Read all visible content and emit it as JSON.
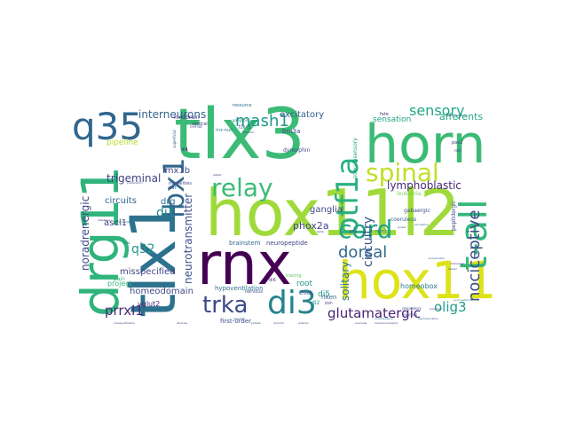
{
  "words": [
    {
      "text": "tlx3",
      "color": "#3BBB75"
    },
    {
      "text": "horn",
      "color": "#3BBB75"
    },
    {
      "text": "hox11l2",
      "color": "#9FDA3A"
    },
    {
      "text": "tlx1",
      "color": "#2C728E"
    },
    {
      "text": "drg11",
      "color": "#2FB47C"
    },
    {
      "text": "rnx",
      "color": "#440154"
    },
    {
      "text": "hox11",
      "color": "#DDE318"
    },
    {
      "text": "q35",
      "color": "#31668E"
    },
    {
      "text": "t-all",
      "color": "#35B779"
    },
    {
      "text": "lbx1",
      "color": "#31688E"
    },
    {
      "text": "ptf1a",
      "color": "#2AB07F"
    },
    {
      "text": "spinal",
      "color": "#C0DF25"
    },
    {
      "text": "cord",
      "color": "#20A386"
    },
    {
      "text": "relay",
      "color": "#3BBB75"
    },
    {
      "text": "di3",
      "color": "#26828E"
    },
    {
      "text": "trka",
      "color": "#3E4A89"
    },
    {
      "text": "mash1",
      "color": "#1F988B"
    },
    {
      "text": "nociceptive",
      "color": "#3E4C8A"
    },
    {
      "text": "dorsal",
      "color": "#31688E"
    },
    {
      "text": "sensory",
      "color": "#22A884"
    },
    {
      "text": "glutamatergic",
      "color": "#482475"
    },
    {
      "text": "olig3",
      "color": "#1E9B8A"
    },
    {
      "text": "prrxl1",
      "color": "#482878"
    },
    {
      "text": "q32",
      "color": "#1F9A8A"
    },
    {
      "text": "di1",
      "color": "#23888E"
    },
    {
      "text": "circuitry",
      "color": "#3B528B"
    },
    {
      "text": "solitary",
      "color": "#2A788E"
    },
    {
      "text": "lymphoblastic",
      "color": "#482878"
    },
    {
      "text": "interneurons",
      "color": "#33638D"
    },
    {
      "text": "trigeminal",
      "color": "#433E85"
    },
    {
      "text": "neurotransmitter",
      "color": "#3B528B"
    },
    {
      "text": "noradrenergic",
      "color": "#3F4788"
    },
    {
      "text": "homeodomain",
      "color": "#3E4A89"
    },
    {
      "text": "misspecified",
      "color": "#414487"
    },
    {
      "text": "circuits",
      "color": "#33638D"
    },
    {
      "text": "ascl1",
      "color": "#433E85"
    },
    {
      "text": "phox2a",
      "color": "#3F4788"
    },
    {
      "text": "lmx1b",
      "color": "#404688"
    },
    {
      "text": "drg",
      "color": "#2D708E"
    },
    {
      "text": "ganglia",
      "color": "#3E4C8A"
    },
    {
      "text": "excitatory",
      "color": "#35608D"
    },
    {
      "text": "afferents",
      "color": "#25AB82"
    },
    {
      "text": "sensation",
      "color": "#20A486"
    },
    {
      "text": "root",
      "color": "#21918C"
    },
    {
      "text": "di5",
      "color": "#1F968B"
    },
    {
      "text": "pipeline",
      "color": "#B8DE29"
    },
    {
      "text": "project",
      "color": "#35B779"
    },
    {
      "text": "vglut2",
      "color": "#482475"
    },
    {
      "text": "brainstem",
      "color": "#31688E"
    },
    {
      "text": "neuropeptide",
      "color": "#404588"
    },
    {
      "text": "homeobox",
      "color": "#2A788E"
    },
    {
      "text": "hindbrain",
      "color": "#46327E"
    },
    {
      "text": "first-order",
      "color": "#3E4A89"
    },
    {
      "text": "hypoventilation",
      "color": "#2C728E"
    },
    {
      "text": "riken",
      "color": "#31688E"
    },
    {
      "text": "gabaergic",
      "color": "#3B528B"
    },
    {
      "text": "coeruleus",
      "color": "#34618D"
    },
    {
      "text": "leukemia",
      "color": "#7AD151"
    },
    {
      "text": "peptidergic",
      "color": "#3E4A89"
    },
    {
      "text": "tlx-3",
      "color": "#365C8D"
    },
    {
      "text": "dynorphin",
      "color": "#3E4A89"
    },
    {
      "text": "somatosensory",
      "color": "#1FA088"
    },
    {
      "text": "chick",
      "color": "#404688"
    },
    {
      "text": "di2",
      "color": "#1F968B"
    },
    {
      "text": "di4",
      "color": "#482475"
    },
    {
      "text": "di6",
      "color": "#453781"
    },
    {
      "text": "ventral",
      "color": "#46337E"
    },
    {
      "text": "nervous",
      "color": "#3E4A89"
    },
    {
      "text": "ngn1",
      "color": "#2D708E"
    },
    {
      "text": "pax2",
      "color": "#443A83"
    },
    {
      "text": "fate",
      "color": "#453781"
    },
    {
      "text": "resource",
      "color": "#2C728E"
    },
    {
      "text": "modalities",
      "color": "#3E4C8A"
    },
    {
      "text": "respiratory",
      "color": "#3B528B"
    },
    {
      "text": "neurons",
      "color": "#39568C"
    },
    {
      "text": "prv",
      "color": "#3F4788"
    },
    {
      "text": "alar",
      "color": "#3E4C8A"
    },
    {
      "text": "bhlh",
      "color": "#46327E"
    },
    {
      "text": "cryptic",
      "color": "#2FB47C"
    },
    {
      "text": "pain",
      "color": "#3BBB75"
    },
    {
      "text": "tracing",
      "color": "#5EC962"
    },
    {
      "text": "brn3a",
      "color": "#3F4788"
    },
    {
      "text": "rnx-null",
      "color": "#2A788E"
    },
    {
      "text": "superficial",
      "color": "#365C8D"
    },
    {
      "text": "taste",
      "color": "#46327E"
    },
    {
      "text": "visceral",
      "color": "#404688"
    },
    {
      "text": "mechanoreceptor",
      "color": "#3E4A89"
    },
    {
      "text": "neuronal",
      "color": "#414487"
    },
    {
      "text": "noradrenaline",
      "color": "#2A788E"
    },
    {
      "text": "peltate",
      "color": "#31688E"
    },
    {
      "text": "hox11l1",
      "color": "#414487"
    },
    {
      "text": "anterior",
      "color": "#3E4A89"
    },
    {
      "text": "electroporation",
      "color": "#33638D"
    },
    {
      "text": "misspecification",
      "color": "#3E4C8A"
    },
    {
      "text": "libraries",
      "color": "#414487"
    },
    {
      "text": "precursor",
      "color": "#46327E"
    },
    {
      "text": "pruriceptors",
      "color": "#2A788E"
    },
    {
      "text": "spatio-temporal",
      "color": "#3E4A89"
    },
    {
      "text": "cholinergic",
      "color": "#46327E"
    },
    {
      "text": "unreachable",
      "color": "#2D708E"
    },
    {
      "text": "lateral",
      "color": "#3F4788"
    },
    {
      "text": "proper",
      "color": "#433E85"
    },
    {
      "text": "perception",
      "color": "#2D708E"
    },
    {
      "text": "ganglion",
      "color": "#21918C"
    },
    {
      "text": "preparation",
      "color": "#3B528B"
    },
    {
      "text": "database",
      "color": "#46327E"
    },
    {
      "text": "diversity",
      "color": "#35608D"
    },
    {
      "text": "roof",
      "color": "#3E4A89"
    },
    {
      "text": "trac",
      "color": "#2D708E"
    },
    {
      "text": "cell-tat",
      "color": "#3E4A89"
    },
    {
      "text": "hydrocode",
      "color": "#2D708E"
    },
    {
      "text": "elated",
      "color": "#46327E"
    }
  ]
}
